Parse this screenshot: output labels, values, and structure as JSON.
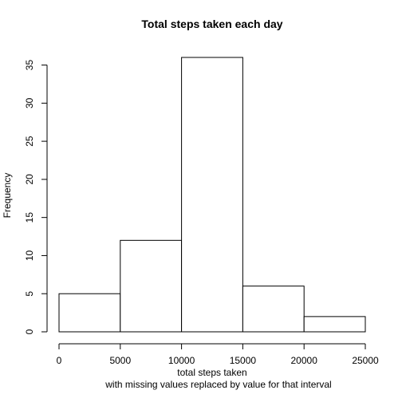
{
  "chart_data": {
    "type": "bar",
    "title": "Total steps taken each day",
    "xlabel": "total steps taken",
    "subtitle": "with missing values replaced by value for that interval",
    "ylabel": "Frequency",
    "bins": [
      {
        "from": 0,
        "to": 5000,
        "count": 5
      },
      {
        "from": 5000,
        "to": 10000,
        "count": 12
      },
      {
        "from": 10000,
        "to": 15000,
        "count": 36
      },
      {
        "from": 15000,
        "to": 20000,
        "count": 6
      },
      {
        "from": 20000,
        "to": 25000,
        "count": 2
      }
    ],
    "xlim": [
      0,
      25000
    ],
    "ylim": [
      0,
      36
    ],
    "xticks": [
      0,
      5000,
      10000,
      15000,
      20000,
      25000
    ],
    "xtick_labels": [
      "0",
      "5000",
      "10000",
      "15000",
      "20000",
      "25000"
    ],
    "yticks": [
      0,
      5,
      10,
      15,
      20,
      25,
      30,
      35
    ],
    "ytick_labels": [
      "0",
      "5",
      "10",
      "15",
      "20",
      "25",
      "30",
      "35"
    ],
    "grid": false,
    "colors": {
      "bar_fill": "#ffffff",
      "bar_stroke": "#000000"
    }
  }
}
